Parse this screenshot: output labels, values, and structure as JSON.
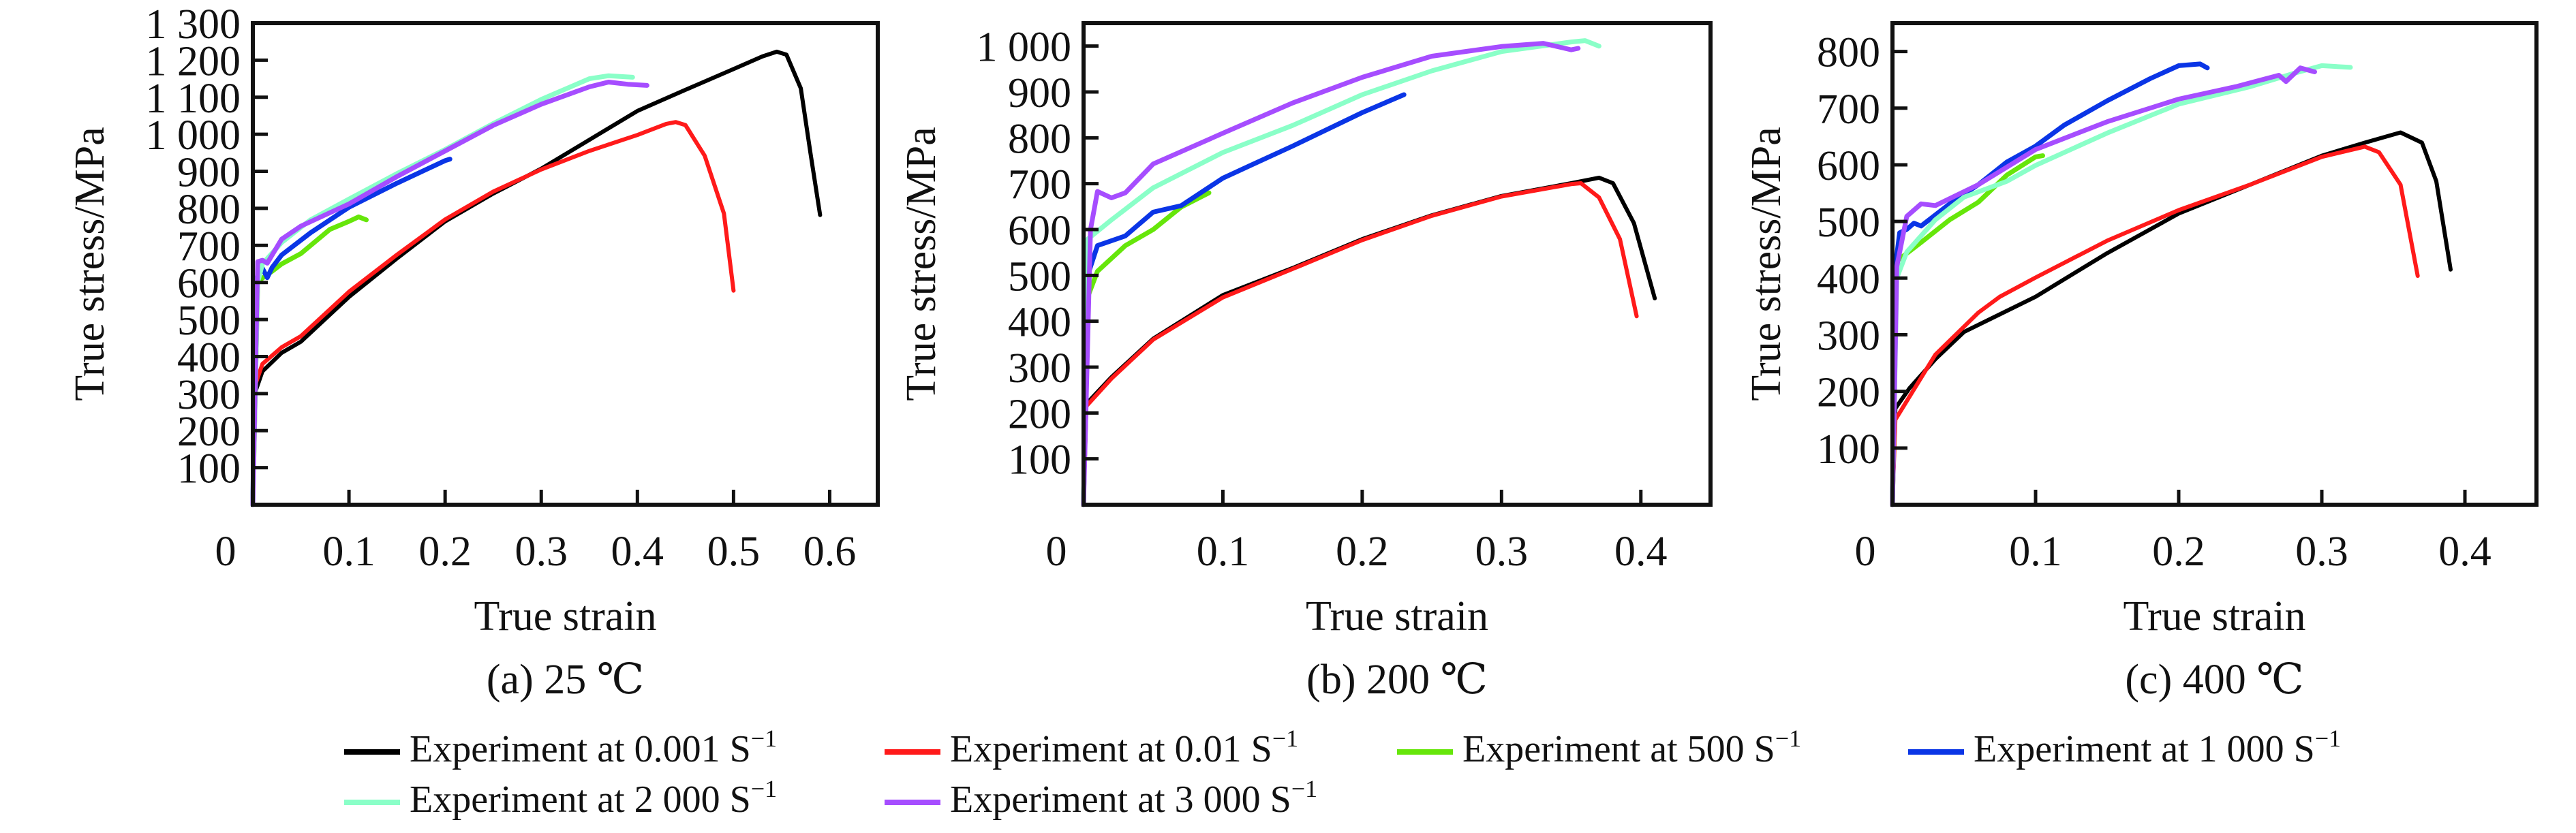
{
  "figure": {
    "legend": [
      {
        "label": "Experiment at 0.001 S",
        "sup": "−1",
        "color": "#000000"
      },
      {
        "label": "Experiment at 0.01 S",
        "sup": "−1",
        "color": "#ff1a1a"
      },
      {
        "label": "Experiment at 500 S",
        "sup": "−1",
        "color": "#66e60a"
      },
      {
        "label": "Experiment at 1 000 S",
        "sup": "−1",
        "color": "#0a35e6"
      },
      {
        "label": "Experiment at 2 000 S",
        "sup": "−1",
        "color": "#8affc8"
      },
      {
        "label": "Experiment at 3 000 S",
        "sup": "−1",
        "color": "#a64dff"
      }
    ]
  },
  "chart_data": [
    {
      "type": "line",
      "title": "(a) 25 ℃",
      "xlabel": "True strain",
      "ylabel": "True stress/MPa",
      "xlim": [
        0,
        0.65
      ],
      "ylim": [
        0,
        1300
      ],
      "xticks": [
        0,
        0.1,
        0.2,
        0.3,
        0.4,
        0.5,
        0.6
      ],
      "xtick_labels": [
        "0",
        "0.1",
        "0.2",
        "0.3",
        "0.4",
        "0.5",
        "0.6"
      ],
      "yticks": [
        100,
        200,
        300,
        400,
        500,
        600,
        700,
        800,
        900,
        1000,
        1100,
        1200,
        1300
      ],
      "ytick_labels": [
        "100",
        "200",
        "300",
        "400",
        "500",
        "600",
        "700",
        "800",
        "900",
        "1 000",
        "1 100",
        "1 200",
        "1 300"
      ],
      "grid": false,
      "series": [
        {
          "name": "Experiment at 0.001 S−1",
          "x": [
            0,
            0.002,
            0.01,
            0.03,
            0.05,
            0.1,
            0.15,
            0.2,
            0.25,
            0.3,
            0.35,
            0.4,
            0.45,
            0.5,
            0.53,
            0.545,
            0.555,
            0.57,
            0.58,
            0.59
          ],
          "y": [
            0,
            300,
            360,
            410,
            440,
            561,
            665,
            765,
            840,
            907,
            985,
            1063,
            1120,
            1176,
            1210,
            1223,
            1215,
            1124,
            950,
            782
          ]
        },
        {
          "name": "Experiment at 0.01 S−1",
          "x": [
            0,
            0.002,
            0.01,
            0.03,
            0.05,
            0.1,
            0.15,
            0.2,
            0.25,
            0.3,
            0.35,
            0.4,
            0.43,
            0.44,
            0.45,
            0.47,
            0.49,
            0.5
          ],
          "y": [
            0,
            320,
            380,
            425,
            455,
            575,
            675,
            770,
            845,
            905,
            955,
            998,
            1028,
            1033,
            1025,
            942,
            786,
            578
          ]
        },
        {
          "name": "Experiment at 500 S−1",
          "x": [
            0,
            0.005,
            0.01,
            0.02,
            0.03,
            0.05,
            0.08,
            0.1,
            0.11,
            0.118
          ],
          "y": [
            0,
            600,
            612,
            630,
            650,
            678,
            743,
            765,
            777,
            769
          ]
        },
        {
          "name": "Experiment at 1 000 S−1",
          "x": [
            0,
            0.003,
            0.008,
            0.015,
            0.02,
            0.03,
            0.06,
            0.1,
            0.15,
            0.2,
            0.205
          ],
          "y": [
            0,
            600,
            648,
            613,
            640,
            674,
            734,
            803,
            868,
            929,
            933
          ]
        },
        {
          "name": "Experiment at 2 000 S−1",
          "x": [
            0,
            0.005,
            0.01,
            0.03,
            0.06,
            0.1,
            0.15,
            0.2,
            0.25,
            0.3,
            0.35,
            0.37,
            0.395
          ],
          "y": [
            0,
            600,
            650,
            708,
            769,
            825,
            894,
            959,
            1029,
            1094,
            1150,
            1158,
            1154
          ]
        },
        {
          "name": "Experiment at 3 000 S−1",
          "x": [
            0,
            0.005,
            0.01,
            0.015,
            0.03,
            0.05,
            0.1,
            0.15,
            0.2,
            0.25,
            0.3,
            0.35,
            0.37,
            0.39,
            0.41
          ],
          "y": [
            0,
            656,
            660,
            652,
            717,
            752,
            812,
            886,
            955,
            1024,
            1081,
            1128,
            1141,
            1135,
            1132
          ]
        }
      ]
    },
    {
      "type": "line",
      "title": "(b) 200 ℃",
      "xlabel": "True strain",
      "ylabel": "True stress/MPa",
      "xlim": [
        0,
        0.45
      ],
      "ylim": [
        0,
        1050
      ],
      "xticks": [
        0,
        0.1,
        0.2,
        0.3,
        0.4
      ],
      "xtick_labels": [
        "0",
        "0.1",
        "0.2",
        "0.3",
        "0.4"
      ],
      "yticks": [
        100,
        200,
        300,
        400,
        500,
        600,
        700,
        800,
        900,
        1000
      ],
      "ytick_labels": [
        "100",
        "200",
        "300",
        "400",
        "500",
        "600",
        "700",
        "800",
        "900",
        "1 000"
      ],
      "grid": false,
      "series": [
        {
          "name": "Experiment at 0.001 S−1",
          "x": [
            0,
            0.002,
            0.02,
            0.05,
            0.1,
            0.15,
            0.2,
            0.25,
            0.3,
            0.35,
            0.37,
            0.38,
            0.395,
            0.41
          ],
          "y": [
            0,
            220,
            278,
            362,
            457,
            516,
            579,
            631,
            673,
            701,
            713,
            701,
            614,
            450
          ]
        },
        {
          "name": "Experiment at 0.01 S−1",
          "x": [
            0,
            0.002,
            0.02,
            0.05,
            0.1,
            0.15,
            0.2,
            0.25,
            0.3,
            0.35,
            0.357,
            0.37,
            0.385,
            0.397
          ],
          "y": [
            0,
            215,
            275,
            360,
            452,
            514,
            577,
            630,
            672,
            699,
            701,
            670,
            579,
            411
          ]
        },
        {
          "name": "Experiment at 500 S−1",
          "x": [
            0,
            0.003,
            0.01,
            0.02,
            0.03,
            0.05,
            0.07,
            0.09
          ],
          "y": [
            0,
            453,
            509,
            537,
            565,
            600,
            649,
            680
          ]
        },
        {
          "name": "Experiment at 1 000 S−1",
          "x": [
            0,
            0.003,
            0.01,
            0.03,
            0.05,
            0.06,
            0.07,
            0.1,
            0.12,
            0.15,
            0.2,
            0.23
          ],
          "y": [
            0,
            500,
            565,
            586,
            638,
            645,
            652,
            712,
            740,
            782,
            855,
            894
          ]
        },
        {
          "name": "Experiment at 2 000 S−1",
          "x": [
            0,
            0.003,
            0.02,
            0.05,
            0.1,
            0.15,
            0.2,
            0.25,
            0.3,
            0.35,
            0.36,
            0.37
          ],
          "y": [
            0,
            579,
            621,
            691,
            768,
            827,
            894,
            946,
            988,
            1009,
            1012,
            1000
          ]
        },
        {
          "name": "Experiment at 3 000 S−1",
          "x": [
            0,
            0.005,
            0.01,
            0.02,
            0.03,
            0.05,
            0.1,
            0.15,
            0.2,
            0.25,
            0.3,
            0.33,
            0.35,
            0.355
          ],
          "y": [
            0,
            600,
            683,
            669,
            680,
            743,
            810,
            876,
            932,
            978,
            999,
            1006,
            992,
            995
          ]
        }
      ]
    },
    {
      "type": "line",
      "title": "(c) 400 ℃",
      "xlabel": "True strain",
      "ylabel": "True stress/MPa",
      "xlim": [
        0,
        0.45
      ],
      "ylim": [
        0,
        850
      ],
      "xticks": [
        0,
        0.1,
        0.2,
        0.3,
        0.4
      ],
      "xtick_labels": [
        "0",
        "0.1",
        "0.2",
        "0.3",
        "0.4"
      ],
      "yticks": [
        100,
        200,
        300,
        400,
        500,
        600,
        700,
        800
      ],
      "ytick_labels": [
        "100",
        "200",
        "300",
        "400",
        "500",
        "600",
        "700",
        "800"
      ],
      "grid": false,
      "series": [
        {
          "name": "Experiment at 0.001 S−1",
          "x": [
            0,
            0.002,
            0.012,
            0.03,
            0.05,
            0.1,
            0.15,
            0.2,
            0.25,
            0.3,
            0.33,
            0.355,
            0.37,
            0.38,
            0.39
          ],
          "y": [
            0,
            170,
            206,
            257,
            305,
            367,
            444,
            514,
            565,
            616,
            639,
            657,
            639,
            571,
            415
          ]
        },
        {
          "name": "Experiment at 0.01 S−1",
          "x": [
            0,
            0.002,
            0.03,
            0.06,
            0.075,
            0.1,
            0.15,
            0.2,
            0.25,
            0.3,
            0.33,
            0.34,
            0.355,
            0.367
          ],
          "y": [
            0,
            150,
            265,
            339,
            367,
            401,
            466,
            520,
            565,
            614,
            632,
            622,
            565,
            404
          ]
        },
        {
          "name": "Experiment at 500 S−1",
          "x": [
            0,
            0.003,
            0.02,
            0.04,
            0.06,
            0.08,
            0.1,
            0.105
          ],
          "y": [
            0,
            430,
            463,
            503,
            534,
            582,
            614,
            616
          ]
        },
        {
          "name": "Experiment at 1 000 S−1",
          "x": [
            0,
            0.002,
            0.005,
            0.01,
            0.015,
            0.02,
            0.04,
            0.06,
            0.08,
            0.1,
            0.12,
            0.15,
            0.18,
            0.2,
            0.215,
            0.22
          ],
          "y": [
            0,
            420,
            480,
            486,
            497,
            492,
            531,
            565,
            605,
            633,
            670,
            713,
            752,
            775,
            778,
            771
          ]
        },
        {
          "name": "Experiment at 2 000 S−1",
          "x": [
            0,
            0.003,
            0.01,
            0.03,
            0.05,
            0.08,
            0.1,
            0.15,
            0.2,
            0.25,
            0.28,
            0.3,
            0.32
          ],
          "y": [
            0,
            400,
            446,
            503,
            543,
            571,
            599,
            656,
            707,
            738,
            761,
            775,
            772
          ]
        },
        {
          "name": "Experiment at 3 000 S−1",
          "x": [
            0,
            0.003,
            0.01,
            0.02,
            0.03,
            0.06,
            0.1,
            0.15,
            0.2,
            0.24,
            0.27,
            0.275,
            0.285,
            0.295
          ],
          "y": [
            0,
            420,
            509,
            531,
            528,
            565,
            627,
            676,
            716,
            738,
            758,
            747,
            771,
            764
          ]
        }
      ]
    }
  ]
}
